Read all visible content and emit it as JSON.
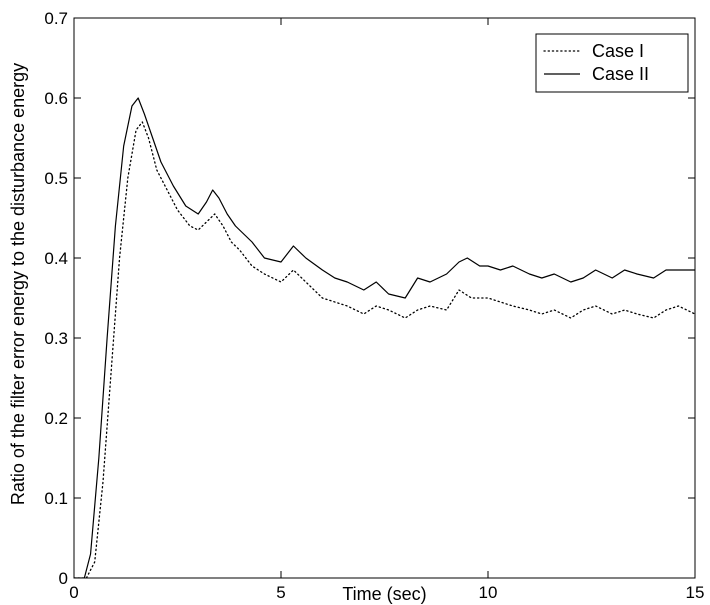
{
  "chart_data": {
    "type": "line",
    "title": "",
    "xlabel": "Time (sec)",
    "ylabel": "Ratio of the filter error energy to the disturbance energy",
    "xlim": [
      0,
      15
    ],
    "ylim": [
      0,
      0.7
    ],
    "xticks": [
      0,
      5,
      10,
      15
    ],
    "xtick_labels": [
      "0",
      "5",
      "10",
      "15"
    ],
    "yticks": [
      0,
      0.1,
      0.2,
      0.3,
      0.4,
      0.5,
      0.6,
      0.7
    ],
    "ytick_labels": [
      "0",
      "0.1",
      "0.2",
      "0.3",
      "0.4",
      "0.5",
      "0.6",
      "0.7"
    ],
    "grid": false,
    "legend_position": "top-right",
    "series": [
      {
        "name": "Case I",
        "style": "dotted",
        "color": "#000000",
        "x": [
          0,
          0.3,
          0.5,
          0.7,
          0.9,
          1.1,
          1.3,
          1.5,
          1.65,
          1.8,
          2.0,
          2.2,
          2.5,
          2.8,
          3.0,
          3.2,
          3.4,
          3.6,
          3.8,
          4.0,
          4.3,
          4.6,
          5.0,
          5.3,
          5.6,
          6.0,
          6.3,
          6.6,
          7.0,
          7.3,
          7.6,
          8.0,
          8.3,
          8.6,
          9.0,
          9.3,
          9.6,
          10.0,
          10.3,
          10.6,
          11.0,
          11.3,
          11.6,
          12.0,
          12.3,
          12.6,
          13.0,
          13.3,
          13.6,
          14.0,
          14.3,
          14.6,
          15.0
        ],
        "y": [
          0,
          0,
          0.02,
          0.12,
          0.26,
          0.4,
          0.5,
          0.56,
          0.57,
          0.55,
          0.51,
          0.49,
          0.46,
          0.44,
          0.435,
          0.445,
          0.455,
          0.44,
          0.42,
          0.41,
          0.39,
          0.38,
          0.37,
          0.385,
          0.37,
          0.35,
          0.345,
          0.34,
          0.33,
          0.34,
          0.335,
          0.325,
          0.335,
          0.34,
          0.335,
          0.36,
          0.35,
          0.35,
          0.345,
          0.34,
          0.335,
          0.33,
          0.335,
          0.325,
          0.335,
          0.34,
          0.33,
          0.335,
          0.33,
          0.325,
          0.335,
          0.34,
          0.33
        ]
      },
      {
        "name": "Case II",
        "style": "solid",
        "color": "#000000",
        "x": [
          0,
          0.25,
          0.4,
          0.6,
          0.8,
          1.0,
          1.2,
          1.4,
          1.55,
          1.7,
          1.9,
          2.1,
          2.4,
          2.7,
          3.0,
          3.2,
          3.35,
          3.5,
          3.7,
          3.9,
          4.1,
          4.3,
          4.6,
          5.0,
          5.3,
          5.6,
          6.0,
          6.3,
          6.6,
          7.0,
          7.3,
          7.6,
          8.0,
          8.3,
          8.6,
          9.0,
          9.3,
          9.5,
          9.8,
          10.0,
          10.3,
          10.6,
          11.0,
          11.3,
          11.6,
          12.0,
          12.3,
          12.6,
          13.0,
          13.3,
          13.6,
          14.0,
          14.3,
          14.6,
          15.0
        ],
        "y": [
          0,
          0,
          0.03,
          0.15,
          0.3,
          0.44,
          0.54,
          0.59,
          0.6,
          0.58,
          0.55,
          0.52,
          0.49,
          0.465,
          0.455,
          0.47,
          0.485,
          0.475,
          0.455,
          0.44,
          0.43,
          0.42,
          0.4,
          0.395,
          0.415,
          0.4,
          0.385,
          0.375,
          0.37,
          0.36,
          0.37,
          0.355,
          0.35,
          0.375,
          0.37,
          0.38,
          0.395,
          0.4,
          0.39,
          0.39,
          0.385,
          0.39,
          0.38,
          0.375,
          0.38,
          0.37,
          0.375,
          0.385,
          0.375,
          0.385,
          0.38,
          0.375,
          0.385,
          0.385,
          0.385
        ]
      }
    ]
  }
}
